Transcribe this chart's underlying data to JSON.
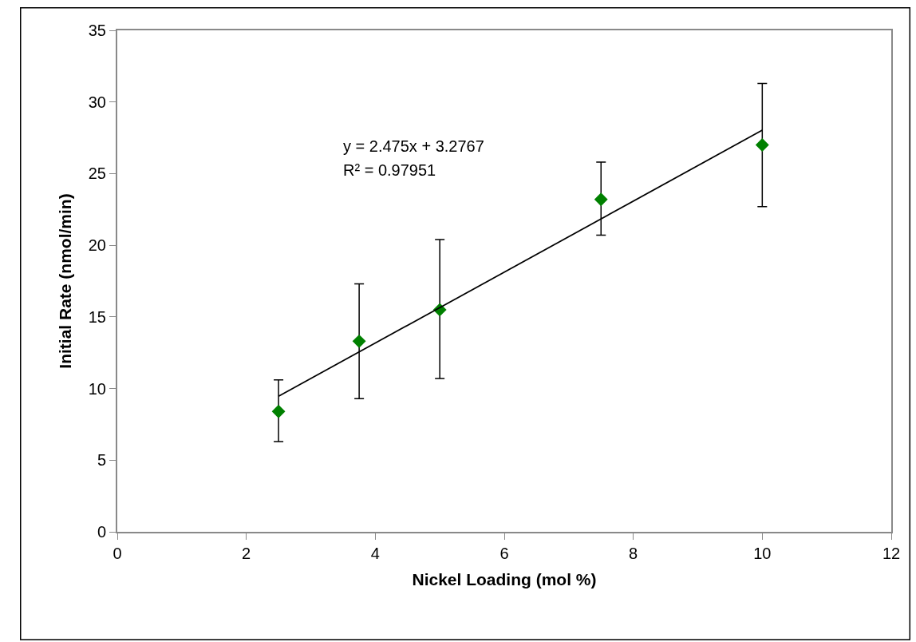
{
  "chart_data": {
    "type": "scatter",
    "xlabel": "Nickel Loading (mol %)",
    "ylabel": "Initial Rate (nmol/min)",
    "series": [
      {
        "color": "#008000",
        "marker": "diamond",
        "x": [
          2.5,
          3.75,
          5,
          7.5,
          10
        ],
        "values": [
          8.4,
          13.3,
          15.5,
          23.2,
          27.0
        ],
        "errors": [
          [
            6.3,
            10.6
          ],
          [
            9.3,
            17.3
          ],
          [
            10.7,
            20.4
          ],
          [
            20.7,
            25.8
          ],
          [
            22.7,
            31.3
          ]
        ]
      },
      {
        "type": "line",
        "color": "#000000",
        "line_style": "solid",
        "marker": "none",
        "x": [
          2.5,
          10
        ],
        "values": [
          9.46,
          28.03
        ]
      }
    ],
    "annotations": [
      "y = 2.475x + 3.2767",
      "R² = 0.97951"
    ],
    "xlim": [
      0,
      12
    ],
    "xticks": [
      0,
      2,
      4,
      6,
      8,
      10,
      12
    ],
    "ylim": [
      0,
      35
    ],
    "yticks": [
      0,
      5,
      10,
      15,
      20,
      25,
      30,
      35
    ]
  }
}
